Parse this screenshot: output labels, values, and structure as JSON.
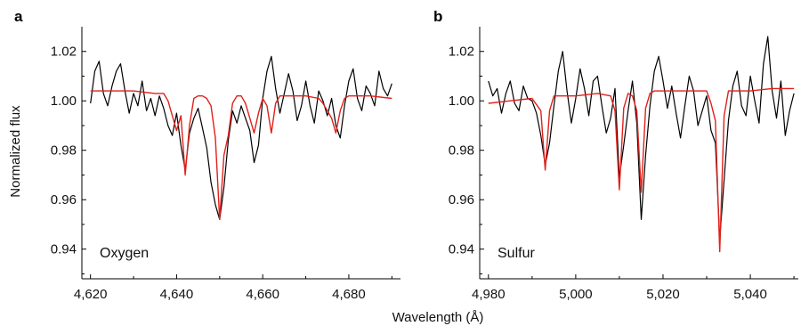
{
  "figure": {
    "xlabel": "Wavelength (Å)",
    "ylabel": "Normalized flux"
  },
  "colors": {
    "observed": "#000000",
    "model": "#e0201b"
  },
  "chart_data": [
    {
      "type": "line",
      "panel_label": "a",
      "annotation": "Oxygen",
      "xlim": [
        4618,
        4692
      ],
      "ylim": [
        0.928,
        1.03
      ],
      "x_ticks": [
        4620,
        4640,
        4660,
        4680
      ],
      "x_tick_labels": [
        "4,620",
        "4,640",
        "4,660",
        "4,680"
      ],
      "y_ticks": [
        0.94,
        0.96,
        0.98,
        1.0,
        1.02
      ],
      "y_tick_labels": [
        "0.94",
        "0.96",
        "0.98",
        "1.00",
        "1.02"
      ],
      "series": [
        {
          "style": "observed",
          "x": [
            4620,
            4621,
            4622,
            4623,
            4624,
            4625,
            4626,
            4627,
            4628,
            4629,
            4630,
            4631,
            4632,
            4633,
            4634,
            4635,
            4636,
            4637,
            4638,
            4639,
            4640,
            4641,
            4642,
            4643,
            4644,
            4645,
            4646,
            4647,
            4648,
            4649,
            4650,
            4651,
            4652,
            4653,
            4654,
            4655,
            4656,
            4657,
            4658,
            4659,
            4660,
            4661,
            4662,
            4663,
            4664,
            4665,
            4666,
            4667,
            4668,
            4669,
            4670,
            4671,
            4672,
            4673,
            4674,
            4675,
            4676,
            4677,
            4678,
            4679,
            4680,
            4681,
            4682,
            4683,
            4684,
            4685,
            4686,
            4687,
            4688,
            4689,
            4690
          ],
          "y": [
            0.999,
            1.012,
            1.016,
            1.003,
            0.998,
            1.006,
            1.012,
            1.015,
            1.004,
            0.995,
            1.003,
            0.998,
            1.008,
            0.996,
            1.001,
            0.994,
            1.002,
            0.997,
            0.99,
            0.986,
            0.995,
            0.982,
            0.972,
            0.987,
            0.993,
            0.997,
            0.989,
            0.981,
            0.967,
            0.958,
            0.952,
            0.965,
            0.984,
            0.996,
            0.991,
            0.998,
            0.993,
            0.988,
            0.975,
            0.982,
            1.001,
            1.012,
            1.018,
            1.005,
            0.995,
            1.003,
            1.011,
            1.004,
            0.992,
            0.998,
            1.008,
            0.998,
            0.991,
            1.004,
            1.0,
            0.994,
            1.001,
            0.99,
            0.985,
            0.998,
            1.008,
            1.013,
            1.001,
            0.996,
            1.006,
            1.003,
            0.998,
            1.012,
            1.005,
            1.002,
            1.007
          ]
        },
        {
          "style": "model",
          "x": [
            4620,
            4625,
            4630,
            4635,
            4637,
            4638,
            4639,
            4640,
            4641,
            4642,
            4643,
            4644,
            4645,
            4646,
            4647,
            4648,
            4649,
            4650,
            4651,
            4652,
            4653,
            4654,
            4655,
            4656,
            4657,
            4658,
            4659,
            4660,
            4661,
            4662,
            4663,
            4664,
            4665,
            4668,
            4670,
            4673,
            4674,
            4675,
            4676,
            4677,
            4678,
            4679,
            4680,
            4685,
            4690
          ],
          "y": [
            1.004,
            1.004,
            1.004,
            1.003,
            1.003,
            1.0,
            0.994,
            0.988,
            0.994,
            0.97,
            0.99,
            1.001,
            1.002,
            1.002,
            1.001,
            0.998,
            0.985,
            0.952,
            0.978,
            0.986,
            0.999,
            1.002,
            1.002,
            0.999,
            0.993,
            0.987,
            0.995,
            1.001,
            0.998,
            0.987,
            0.999,
            1.002,
            1.002,
            1.002,
            1.002,
            1.001,
            0.999,
            0.996,
            0.993,
            0.987,
            0.996,
            1.001,
            1.002,
            1.002,
            1.001
          ]
        }
      ]
    },
    {
      "type": "line",
      "panel_label": "b",
      "annotation": "Sulfur",
      "xlim": [
        4978,
        5051
      ],
      "ylim": [
        0.928,
        1.03
      ],
      "x_ticks": [
        4980,
        5000,
        5020,
        5040
      ],
      "x_tick_labels": [
        "4,980",
        "5,000",
        "5,020",
        "5,040"
      ],
      "y_ticks": [
        0.94,
        0.96,
        0.98,
        1.0,
        1.02
      ],
      "y_tick_labels": [
        "0.94",
        "0.96",
        "0.98",
        "1.00",
        "1.02"
      ],
      "series": [
        {
          "style": "observed",
          "x": [
            4980,
            4981,
            4982,
            4983,
            4984,
            4985,
            4986,
            4987,
            4988,
            4989,
            4990,
            4991,
            4992,
            4993,
            4994,
            4995,
            4996,
            4997,
            4998,
            4999,
            5000,
            5001,
            5002,
            5003,
            5004,
            5005,
            5006,
            5007,
            5008,
            5009,
            5010,
            5011,
            5012,
            5013,
            5014,
            5015,
            5016,
            5017,
            5018,
            5019,
            5020,
            5021,
            5022,
            5023,
            5024,
            5025,
            5026,
            5027,
            5028,
            5029,
            5030,
            5031,
            5032,
            5033,
            5034,
            5035,
            5036,
            5037,
            5038,
            5039,
            5040,
            5041,
            5042,
            5043,
            5044,
            5045,
            5046,
            5047,
            5048,
            5049,
            5050
          ],
          "y": [
            1.008,
            1.002,
            1.005,
            0.995,
            1.003,
            1.008,
            0.999,
            0.996,
            1.006,
            1.001,
            1.0,
            0.995,
            0.986,
            0.974,
            0.983,
            0.998,
            1.012,
            1.02,
            1.004,
            0.991,
            1.001,
            1.013,
            1.005,
            0.994,
            1.008,
            1.01,
            0.998,
            0.987,
            0.993,
            1.005,
            0.969,
            0.982,
            0.996,
            1.008,
            0.991,
            0.952,
            0.978,
            0.998,
            1.012,
            1.018,
            1.008,
            0.997,
            1.006,
            0.995,
            0.985,
            0.998,
            1.01,
            1.004,
            0.99,
            0.996,
            1.002,
            0.988,
            0.983,
            0.944,
            0.968,
            0.992,
            1.006,
            1.012,
            0.998,
            0.994,
            1.01,
            1.0,
            0.991,
            1.015,
            1.026,
            1.004,
            0.993,
            1.008,
            0.986,
            0.996,
            1.003
          ]
        },
        {
          "style": "model",
          "x": [
            4980,
            4985,
            4990,
            4992,
            4993,
            4994,
            4995,
            5000,
            5005,
            5008,
            5009,
            5010,
            5011,
            5012,
            5013,
            5014,
            5015,
            5016,
            5017,
            5018,
            5020,
            5025,
            5030,
            5031,
            5032,
            5033,
            5034,
            5035,
            5036,
            5040,
            5045,
            5050
          ],
          "y": [
            0.999,
            1.0,
            1.001,
            0.996,
            0.972,
            0.996,
            1.002,
            1.002,
            1.003,
            1.002,
            0.996,
            0.964,
            0.997,
            1.003,
            1.002,
            0.996,
            0.963,
            0.997,
            1.003,
            1.004,
            1.004,
            1.004,
            1.004,
            0.999,
            0.992,
            0.939,
            0.994,
            1.004,
            1.004,
            1.004,
            1.005,
            1.005
          ]
        }
      ]
    }
  ]
}
